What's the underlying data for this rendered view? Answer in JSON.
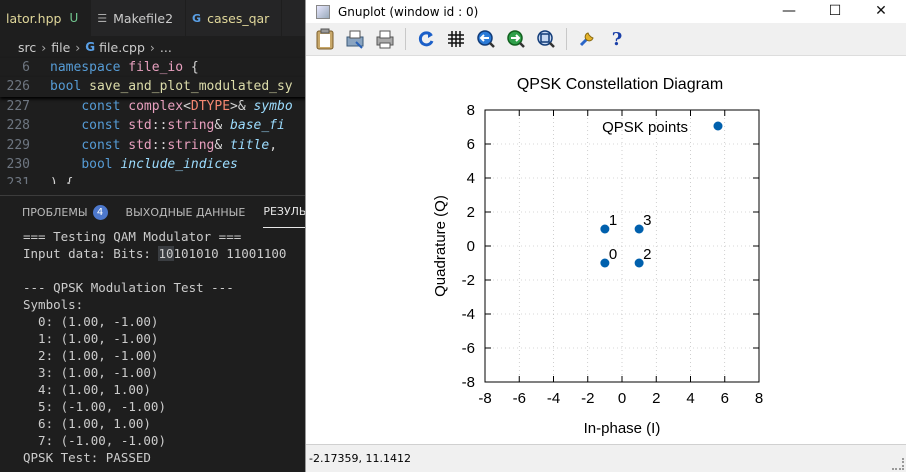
{
  "editor": {
    "tabs": [
      {
        "label": "lator.hpp",
        "modifier": "U",
        "icon": "cpp-header-file-icon"
      },
      {
        "label": "Makefile2",
        "icon": "makefile-icon"
      },
      {
        "label": "cases_qar",
        "icon": "cpp-file-icon"
      }
    ],
    "breadcrumb": [
      "src",
      "file",
      "file.cpp",
      "..."
    ],
    "code_lines": [
      {
        "num": "6",
        "sticky": true
      },
      {
        "num": "226",
        "sticky": true
      },
      {
        "num": "227"
      },
      {
        "num": "228"
      },
      {
        "num": "229"
      },
      {
        "num": "230"
      },
      {
        "num": "231"
      }
    ],
    "code_text": {
      "l6_kw": "namespace",
      "l6_ns": "file_io",
      "l6_brace": " {",
      "l226_kw": "bool",
      "l226_fn": "save_and_plot_modulated_sy",
      "l227_kw": "const",
      "l227_ty": "complex",
      "l227_mac": "DTYPE",
      "l227_rest": ">& ",
      "l227_prm": "symbo",
      "l228_kw": "const",
      "l228_ns": "std",
      "l228_ty": "string",
      "l228_amp": "& ",
      "l228_prm": "base_fi",
      "l229_kw": "const",
      "l229_ns": "std",
      "l229_ty": "string",
      "l229_amp": "& ",
      "l229_prm": "title",
      "l230_kw": "bool",
      "l230_prm": "include_indices",
      "l231_text": ") {"
    },
    "panel": {
      "tabs": [
        {
          "label": "ПРОБЛЕМЫ",
          "badge": "4"
        },
        {
          "label": "ВЫХОДНЫЕ ДАННЫЕ"
        },
        {
          "label": "РЕЗУЛЬТА"
        }
      ],
      "terminal_lines": [
        "=== Testing QAM Modulator ===",
        "Input data: Bits: ",
        "",
        "--- QPSK Modulation Test ---",
        "Symbols:",
        "  0: (1.00, -1.00)",
        "  1: (1.00, -1.00)",
        "  2: (1.00, -1.00)",
        "  3: (1.00, -1.00)",
        "  4: (1.00, 1.00)",
        "  5: (-1.00, -1.00)",
        "  6: (1.00, 1.00)",
        "  7: (-1.00, -1.00)",
        "QPSK Test: PASSED"
      ],
      "input_bits_selected": "10",
      "input_bits_rest": "101010 11001100"
    }
  },
  "gnuplot": {
    "window_title": "Gnuplot (window id : 0)",
    "controls": {
      "minimize": "—",
      "maximize": "☐",
      "close": "✕"
    },
    "toolbar_icons": [
      "clipboard-icon",
      "print-setup-icon",
      "print-icon",
      "replot-icon",
      "grid-icon",
      "zoom-previous-icon",
      "zoom-next-icon",
      "autoscale-icon",
      "options-icon",
      "help-icon"
    ],
    "status_text": "-2.17359,  11.1412"
  },
  "chart_data": {
    "type": "scatter",
    "title": "QPSK Constellation Diagram",
    "xlabel": "In-phase (I)",
    "ylabel": "Quadrature (Q)",
    "xlim": [
      -8,
      8
    ],
    "ylim": [
      -8,
      8
    ],
    "xticks": [
      -8,
      -6,
      -4,
      -2,
      0,
      2,
      4,
      6,
      8
    ],
    "yticks": [
      -8,
      -6,
      -4,
      -2,
      0,
      2,
      4,
      6,
      8
    ],
    "grid": true,
    "legend": {
      "position": "top-right",
      "entries": [
        "QPSK points"
      ]
    },
    "point_color": "#0060ad",
    "series": [
      {
        "name": "QPSK points",
        "points": [
          {
            "x": -1,
            "y": -1,
            "label": "0"
          },
          {
            "x": -1,
            "y": 1,
            "label": "1"
          },
          {
            "x": 1,
            "y": -1,
            "label": "2"
          },
          {
            "x": 1,
            "y": 1,
            "label": "3"
          }
        ]
      }
    ]
  }
}
